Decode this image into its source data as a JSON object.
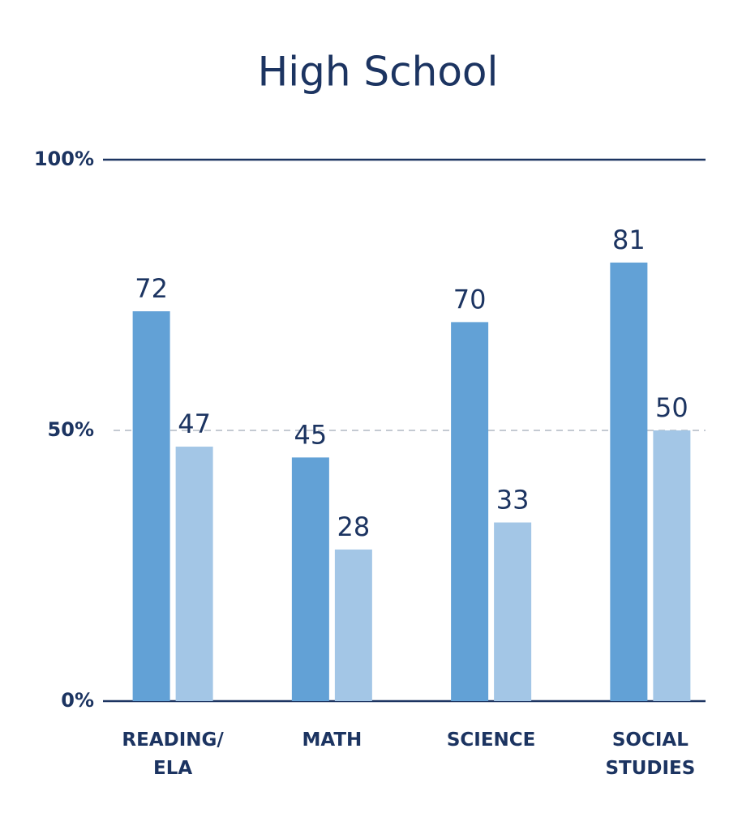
{
  "chart_data": {
    "type": "bar",
    "title": "High School",
    "categories": [
      "READING/\nELA",
      "MATH",
      "SCIENCE",
      "SOCIAL\nSTUDIES"
    ],
    "series": [
      {
        "color": "#62a1d6",
        "values": [
          72,
          45,
          70,
          81
        ]
      },
      {
        "color": "#a3c6e6",
        "values": [
          47,
          28,
          33,
          50
        ]
      }
    ],
    "ylim": [
      0,
      100
    ],
    "yticks": [
      {
        "value": 0,
        "label": "0%"
      },
      {
        "value": 50,
        "label": "50%"
      },
      {
        "value": 100,
        "label": "100%"
      }
    ],
    "grid": true
  }
}
